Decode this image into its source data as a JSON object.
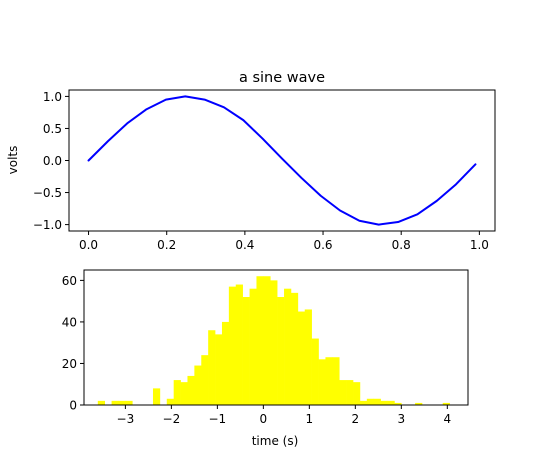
{
  "chart_data": [
    {
      "type": "line",
      "title": "a sine wave",
      "xlabel": "",
      "ylabel": "volts",
      "xlim": [
        -0.05,
        1.04
      ],
      "ylim": [
        -1.1,
        1.1
      ],
      "xticks": [
        0.0,
        0.2,
        0.4,
        0.6,
        0.8,
        1.0
      ],
      "xtick_labels": [
        "0.0",
        "0.2",
        "0.4",
        "0.6",
        "0.8",
        "1.0"
      ],
      "yticks": [
        -1.0,
        -0.5,
        0.0,
        0.5,
        1.0
      ],
      "ytick_labels": [
        "−1.0",
        "−0.5",
        "0.0",
        "0.5",
        "1.0"
      ],
      "grid": false,
      "series": [
        {
          "color": "#0000ff",
          "x": [
            0.0,
            0.0495,
            0.099,
            0.1485,
            0.198,
            0.2475,
            0.297,
            0.3465,
            0.396,
            0.4455,
            0.495,
            0.5445,
            0.594,
            0.6435,
            0.693,
            0.7425,
            0.792,
            0.8415,
            0.891,
            0.9405,
            0.99
          ],
          "y": [
            0.0,
            0.3,
            0.58,
            0.8,
            0.95,
            1.0,
            0.95,
            0.83,
            0.63,
            0.34,
            0.03,
            -0.27,
            -0.55,
            -0.78,
            -0.94,
            -1.0,
            -0.96,
            -0.84,
            -0.63,
            -0.37,
            -0.06
          ]
        }
      ]
    },
    {
      "type": "bar",
      "title": "",
      "xlabel": "time (s)",
      "ylabel": "",
      "xlim": [
        -3.9,
        4.45
      ],
      "ylim": [
        0,
        65
      ],
      "xticks": [
        -3,
        -2,
        -1,
        0,
        1,
        2,
        3,
        4
      ],
      "xtick_labels": [
        "−3",
        "−2",
        "−1",
        "0",
        "1",
        "2",
        "3",
        "4"
      ],
      "yticks": [
        0,
        20,
        40,
        60
      ],
      "ytick_labels": [
        "0",
        "20",
        "40",
        "60"
      ],
      "grid": false,
      "color": "#ffff00",
      "bin_width": 0.15,
      "bins_start": [
        -3.6,
        -3.3,
        -3.15,
        -3.0,
        -2.4,
        -2.1,
        -1.95,
        -1.8,
        -1.65,
        -1.5,
        -1.35,
        -1.2,
        -1.05,
        -0.9,
        -0.75,
        -0.6,
        -0.45,
        -0.3,
        -0.15,
        0.0,
        0.15,
        0.3,
        0.45,
        0.6,
        0.75,
        0.9,
        1.05,
        1.2,
        1.35,
        1.5,
        1.65,
        1.8,
        1.95,
        2.1,
        2.25,
        2.4,
        2.55,
        2.7,
        2.85,
        3.3,
        3.9
      ],
      "values": [
        2,
        2,
        2,
        2,
        8,
        3,
        12,
        11,
        14,
        19,
        24,
        36,
        34,
        40,
        57,
        58,
        52,
        56,
        62,
        62,
        60,
        52,
        56,
        54,
        45,
        46,
        32,
        22,
        23,
        23,
        12,
        12,
        11,
        2,
        3,
        3,
        2,
        2,
        1,
        1,
        1
      ]
    }
  ]
}
